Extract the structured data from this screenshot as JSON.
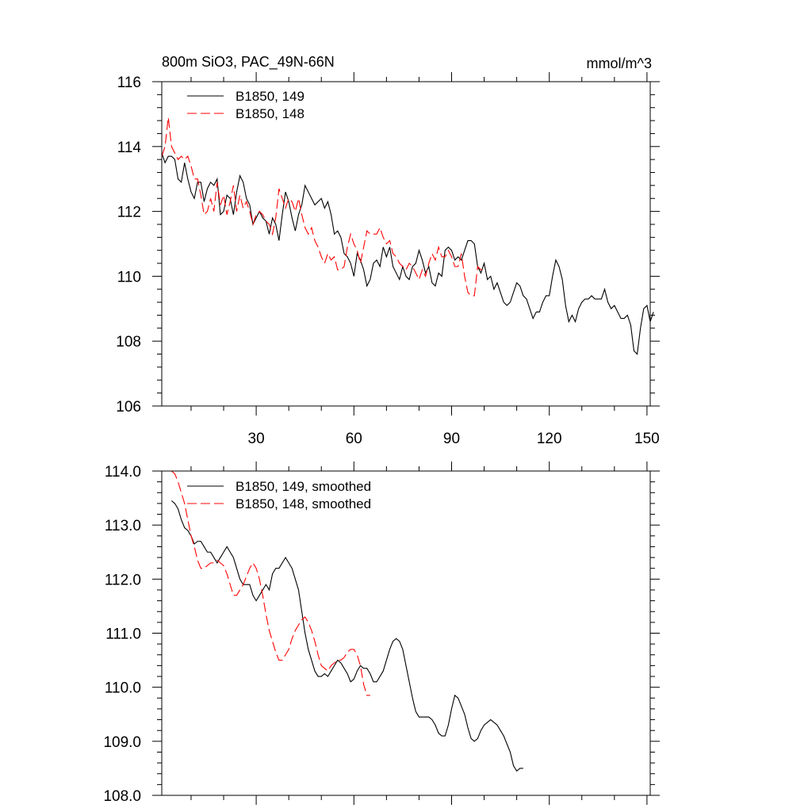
{
  "chart_data": [
    {
      "type": "line",
      "title": "800m SiO3, PAC_49N-66N",
      "units": "mmol/m^3",
      "xlim": [
        1,
        151
      ],
      "ylim": [
        106,
        116
      ],
      "xticks": [
        30,
        60,
        90,
        120,
        150
      ],
      "yticks": [
        106,
        108,
        110,
        112,
        114,
        116
      ],
      "ytick_labels": [
        "106",
        "108",
        "110",
        "112",
        "114",
        "116"
      ],
      "legend_position": "top-left",
      "series": [
        {
          "name": "B1850, 149",
          "color": "#000000",
          "style": "solid",
          "x_start": 1,
          "values": [
            113.8,
            113.5,
            113.7,
            113.7,
            113.6,
            113.0,
            112.9,
            113.5,
            113.0,
            112.6,
            112.4,
            112.9,
            112.9,
            112.3,
            112.7,
            112.9,
            112.8,
            113.0,
            111.9,
            112.0,
            112.5,
            112.4,
            111.9,
            112.6,
            113.1,
            112.9,
            112.4,
            112.2,
            111.6,
            111.8,
            112.0,
            111.8,
            111.7,
            111.3,
            111.8,
            111.6,
            111.1,
            111.9,
            112.6,
            112.3,
            111.8,
            111.4,
            111.9,
            112.2,
            112.8,
            112.6,
            112.4,
            112.2,
            112.3,
            112.4,
            112.1,
            112.3,
            111.9,
            111.3,
            111.4,
            111.2,
            110.7,
            110.6,
            110.4,
            110.0,
            110.7,
            110.5,
            110.2,
            109.7,
            109.9,
            110.4,
            110.5,
            110.3,
            110.9,
            110.6,
            110.9,
            110.3,
            110.1,
            109.9,
            110.3,
            110.0,
            109.9,
            110.3,
            110.4,
            110.8,
            110.5,
            110.1,
            110.3,
            109.8,
            109.7,
            110.1,
            110.0,
            110.8,
            110.9,
            110.8,
            110.5,
            110.6,
            110.5,
            110.8,
            111.1,
            111.1,
            111.0,
            110.3,
            110.1,
            110.4,
            109.9,
            110.0,
            109.6,
            109.8,
            109.5,
            109.2,
            109.1,
            109.2,
            109.5,
            109.8,
            109.7,
            109.4,
            109.3,
            109.0,
            108.7,
            108.9,
            108.9,
            109.2,
            109.4,
            109.4,
            110.0,
            110.5,
            110.3,
            109.9,
            109.1,
            108.6,
            108.8,
            108.6,
            109.0,
            109.2,
            109.3,
            109.3,
            109.4,
            109.3,
            109.3,
            109.3,
            109.6,
            109.2,
            109.0,
            109.1,
            108.9,
            108.7,
            108.7,
            108.8,
            108.5,
            107.7,
            107.6,
            108.4,
            109.0,
            109.1,
            108.6,
            108.9
          ]
        },
        {
          "name": "B1850, 148",
          "color": "#ff0000",
          "style": "dashed",
          "x_start": 1,
          "values": [
            113.7,
            114.0,
            114.9,
            114.0,
            113.8,
            113.6,
            113.7,
            113.6,
            113.7,
            113.4,
            113.0,
            113.0,
            112.5,
            111.9,
            112.0,
            112.4,
            112.0,
            112.9,
            112.2,
            112.5,
            111.9,
            112.3,
            112.8,
            112.0,
            112.5,
            112.1,
            112.3,
            112.0,
            111.6,
            111.9,
            112.0,
            111.9,
            111.7,
            111.6,
            111.3,
            111.8,
            112.7,
            112.4,
            112.1,
            112.4,
            112.3,
            112.0,
            112.4,
            111.9,
            111.5,
            111.3,
            111.5,
            111.1,
            110.9,
            110.6,
            110.4,
            110.7,
            110.5,
            110.6,
            110.2,
            110.2,
            110.3,
            110.9,
            111.3,
            111.0,
            110.8,
            110.4,
            110.9,
            111.4,
            111.3,
            111.3,
            111.3,
            111.5,
            111.2,
            111.0,
            111.1,
            110.7,
            110.6,
            110.4,
            110.3,
            110.2,
            110.4,
            110.3,
            110.1,
            109.9,
            110.2,
            110.0,
            110.4,
            110.7,
            110.5,
            110.9,
            110.6,
            110.6,
            110.8,
            110.6,
            110.3,
            110.3,
            110.7,
            110.0,
            109.5,
            109.4,
            109.4,
            110.3,
            110.2,
            110.2
          ]
        }
      ]
    },
    {
      "type": "line",
      "title": "",
      "xlim": [
        1,
        151
      ],
      "ylim": [
        108,
        114
      ],
      "xticks": [
        30,
        60,
        90,
        120,
        150
      ],
      "yticks": [
        108,
        109,
        110,
        111,
        112,
        113,
        114
      ],
      "ytick_labels": [
        "108.0",
        "109.0",
        "110.0",
        "111.0",
        "112.0",
        "113.0",
        "114.0"
      ],
      "legend_position": "top-left",
      "series": [
        {
          "name": "B1850, 149, smoothed",
          "color": "#000000",
          "style": "solid",
          "x_start": 4,
          "values": [
            113.45,
            113.4,
            113.3,
            113.1,
            112.95,
            112.9,
            112.8,
            112.65,
            112.7,
            112.7,
            112.6,
            112.5,
            112.5,
            112.4,
            112.3,
            112.4,
            112.5,
            112.6,
            112.5,
            112.4,
            112.2,
            112.0,
            111.9,
            111.9,
            111.9,
            111.7,
            111.6,
            111.7,
            111.8,
            111.9,
            111.8,
            112.1,
            112.2,
            112.2,
            112.3,
            112.4,
            112.3,
            112.2,
            112.0,
            111.8,
            111.4,
            111.0,
            110.7,
            110.5,
            110.3,
            110.2,
            110.2,
            110.25,
            110.2,
            110.3,
            110.4,
            110.5,
            110.45,
            110.35,
            110.25,
            110.1,
            110.15,
            110.3,
            110.4,
            110.35,
            110.35,
            110.25,
            110.1,
            110.1,
            110.2,
            110.3,
            110.5,
            110.7,
            110.85,
            110.9,
            110.85,
            110.7,
            110.4,
            110.1,
            109.8,
            109.55,
            109.45,
            109.45,
            109.45,
            109.45,
            109.4,
            109.3,
            109.15,
            109.1,
            109.1,
            109.3,
            109.6,
            109.85,
            109.8,
            109.65,
            109.5,
            109.25,
            109.05,
            109.0,
            109.05,
            109.2,
            109.3,
            109.35,
            109.4,
            109.35,
            109.3,
            109.2,
            109.1,
            108.95,
            108.8,
            108.55,
            108.45,
            108.5,
            108.5
          ]
        },
        {
          "name": "B1850, 148, smoothed",
          "color": "#ff0000",
          "style": "dashed",
          "x_start": 4,
          "values": [
            114.0,
            113.95,
            113.8,
            113.6,
            113.4,
            113.1,
            112.8,
            112.6,
            112.35,
            112.2,
            112.2,
            112.25,
            112.3,
            112.3,
            112.35,
            112.3,
            112.25,
            112.1,
            111.9,
            111.7,
            111.7,
            111.8,
            111.9,
            112.05,
            112.2,
            112.3,
            112.2,
            112.0,
            111.7,
            111.35,
            111.05,
            110.85,
            110.65,
            110.5,
            110.5,
            110.6,
            110.7,
            110.9,
            111.05,
            111.15,
            111.25,
            111.3,
            111.2,
            111.05,
            110.85,
            110.6,
            110.4,
            110.35,
            110.3,
            110.4,
            110.45,
            110.5,
            110.5,
            110.55,
            110.65,
            110.7,
            110.7,
            110.6,
            110.4,
            110.05,
            109.85,
            109.85
          ]
        }
      ]
    }
  ]
}
